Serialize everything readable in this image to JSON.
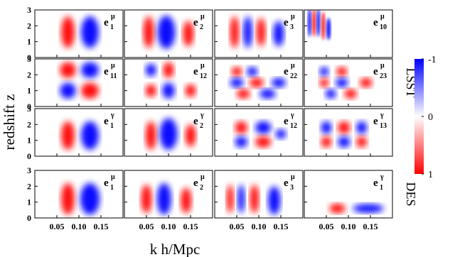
{
  "chart_data": {
    "type": "heatmap",
    "xlabel": "k h/Mpc",
    "ylabel": "redshift z",
    "x_ticks": [
      "0.05",
      "0.10",
      "0.15"
    ],
    "x_tick_values": [
      0.05,
      0.1,
      0.15
    ],
    "xlim": [
      0.0,
      0.2
    ],
    "y_ticks": [
      "0",
      "1",
      "2",
      "3"
    ],
    "ylim": [
      0,
      3
    ],
    "colorbar": {
      "range": [
        1,
        -1
      ],
      "ticks": [
        "-1",
        "0",
        "1"
      ],
      "low_color": "#ff0000",
      "mid_color": "#ffffff",
      "high_color": "#0000ff"
    },
    "groups": [
      {
        "survey": "LSST",
        "rows": [
          0,
          1,
          2
        ]
      },
      {
        "survey": "DES",
        "rows": [
          3
        ]
      }
    ],
    "panels": [
      {
        "row": 0,
        "col": 0,
        "label": "e",
        "sup": "μ",
        "sub": "1"
      },
      {
        "row": 0,
        "col": 1,
        "label": "e",
        "sup": "μ",
        "sub": "2"
      },
      {
        "row": 0,
        "col": 2,
        "label": "e",
        "sup": "μ",
        "sub": "3"
      },
      {
        "row": 0,
        "col": 3,
        "label": "e",
        "sup": "μ",
        "sub": "10"
      },
      {
        "row": 1,
        "col": 0,
        "label": "e",
        "sup": "μ",
        "sub": "11"
      },
      {
        "row": 1,
        "col": 1,
        "label": "e",
        "sup": "μ",
        "sub": "12"
      },
      {
        "row": 1,
        "col": 2,
        "label": "e",
        "sup": "μ",
        "sub": "22"
      },
      {
        "row": 1,
        "col": 3,
        "label": "e",
        "sup": "μ",
        "sub": "23"
      },
      {
        "row": 2,
        "col": 0,
        "label": "e",
        "sup": "γ",
        "sub": "1"
      },
      {
        "row": 2,
        "col": 1,
        "label": "e",
        "sup": "γ",
        "sub": "2"
      },
      {
        "row": 2,
        "col": 2,
        "label": "e",
        "sup": "γ",
        "sub": "12"
      },
      {
        "row": 2,
        "col": 3,
        "label": "e",
        "sup": "γ",
        "sub": "13"
      },
      {
        "row": 3,
        "col": 0,
        "label": "e",
        "sup": "μ",
        "sub": "1"
      },
      {
        "row": 3,
        "col": 1,
        "label": "e",
        "sup": "μ",
        "sub": "2"
      },
      {
        "row": 3,
        "col": 2,
        "label": "e",
        "sup": "μ",
        "sub": "3"
      },
      {
        "row": 3,
        "col": 3,
        "label": "e",
        "sup": "γ",
        "sub": "1"
      }
    ]
  }
}
